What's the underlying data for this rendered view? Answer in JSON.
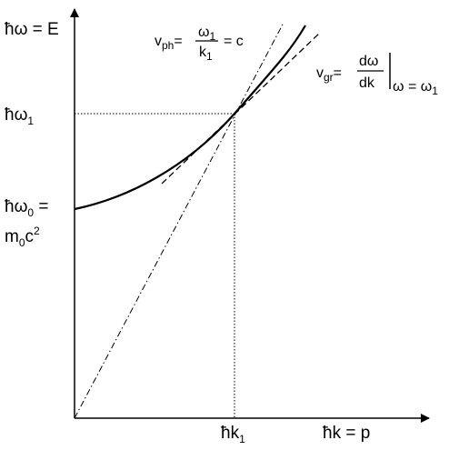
{
  "axes": {
    "y_label": "ħω = E",
    "x_label": "ħk = p"
  },
  "labels": {
    "omega1": {
      "base": "ħω",
      "sub": "1"
    },
    "omega0": {
      "base": "ħω",
      "sub": "0",
      "suffix": " ="
    },
    "rest_energy": {
      "m": "m",
      "sub": "0",
      "c": "c",
      "sup": "2"
    },
    "k1": {
      "base": "ħk",
      "sub": "1"
    }
  },
  "phase_velocity": {
    "symbol": "v",
    "sub": "ph",
    "eq": "=",
    "num_base": "ω",
    "num_sub": "1",
    "den_base": "k",
    "den_sub": "1",
    "result": "= c"
  },
  "group_velocity": {
    "symbol": "v",
    "sub": "gr",
    "eq": "=",
    "num": "dω",
    "den": "dk",
    "cond_base": "ω = ω",
    "cond_sub": "1"
  }
}
